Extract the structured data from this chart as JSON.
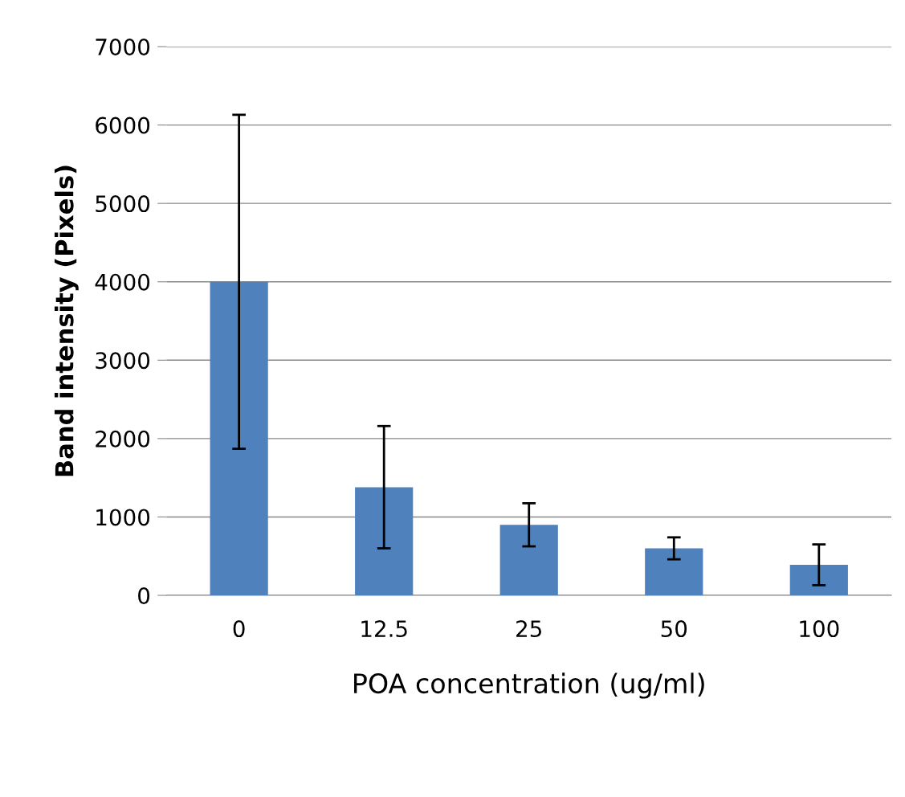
{
  "chart_data": {
    "type": "bar",
    "xlabel": "POA concentration (ug/ml)",
    "ylabel": "Band intensity (Pixels)",
    "categories": [
      "0",
      "12.5",
      "25",
      "50",
      "100"
    ],
    "values": [
      4000,
      1380,
      900,
      600,
      390
    ],
    "errors": [
      2130,
      780,
      275,
      140,
      260
    ],
    "color": "#4f81bd",
    "ylim": [
      0,
      7000
    ],
    "yticks": [
      0,
      1000,
      2000,
      3000,
      4000,
      5000,
      6000,
      7000
    ],
    "grid": "y"
  }
}
